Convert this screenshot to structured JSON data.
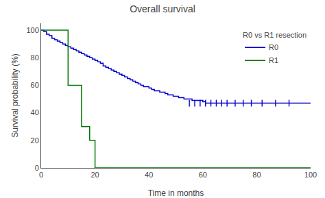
{
  "chart_data": {
    "type": "line",
    "title": "Overall survival",
    "xlabel": "Time in months",
    "ylabel": "Survival probability (%)",
    "xlim": [
      0,
      100
    ],
    "ylim": [
      0,
      105
    ],
    "xticks": [
      0,
      20,
      40,
      60,
      80,
      100
    ],
    "yticks": [
      0,
      20,
      40,
      60,
      80,
      100
    ],
    "grid": false,
    "legend": "upper right",
    "legend_title": "R0 vs R1 resection",
    "series": [
      {
        "name": "R0",
        "color": "#0000cc",
        "line_style": "step",
        "x": [
          0,
          1,
          2,
          3,
          4,
          5,
          6,
          7,
          8,
          9,
          10,
          11,
          12,
          13,
          14,
          15,
          16,
          17,
          18,
          19,
          20,
          21,
          22,
          23,
          24,
          25,
          26,
          27,
          28,
          29,
          30,
          31,
          32,
          33,
          34,
          35,
          36,
          37,
          38,
          39,
          40,
          41,
          42,
          43,
          44,
          45,
          46,
          47,
          48,
          49,
          50,
          51,
          52,
          53,
          54,
          55,
          56,
          57,
          58,
          59,
          60,
          61,
          62,
          63,
          64,
          65,
          66,
          67,
          68,
          69,
          70,
          72,
          74,
          76,
          78,
          80,
          85,
          90,
          95,
          100
        ],
        "values": [
          100,
          99,
          97,
          96,
          94,
          93,
          92,
          91,
          90,
          89,
          88,
          87,
          86,
          85,
          84,
          83,
          82,
          81,
          80,
          79,
          78,
          77,
          76,
          74,
          73,
          72,
          71,
          70,
          69,
          68,
          67,
          66,
          65,
          64,
          63,
          62,
          61,
          60,
          59,
          59,
          58,
          57,
          56,
          56,
          55,
          55,
          54,
          53,
          53,
          52,
          52,
          51,
          51,
          50,
          50,
          50,
          49,
          49,
          49,
          49,
          48,
          47,
          47,
          47,
          47,
          47,
          47,
          47,
          47,
          47,
          47,
          47,
          47,
          47,
          47,
          47,
          47,
          47,
          47,
          47
        ]
      },
      {
        "name": "R1",
        "color": "#007700",
        "line_style": "step",
        "x": [
          0,
          10,
          10,
          15,
          15,
          18,
          18,
          20,
          20,
          22,
          22,
          100
        ],
        "values": [
          100,
          100,
          60,
          60,
          30,
          30,
          20,
          20,
          0,
          0,
          0,
          0
        ]
      },
      {
        "type": "scatter",
        "marker": "vline",
        "color": "#0000cc",
        "x": [
          55,
          57,
          59,
          61,
          63,
          65,
          67,
          69,
          72,
          75,
          78,
          82,
          87,
          92
        ],
        "values": [
          47,
          47,
          47,
          47,
          47,
          47,
          47,
          47,
          47,
          47,
          47,
          47,
          47,
          47
        ]
      }
    ]
  }
}
